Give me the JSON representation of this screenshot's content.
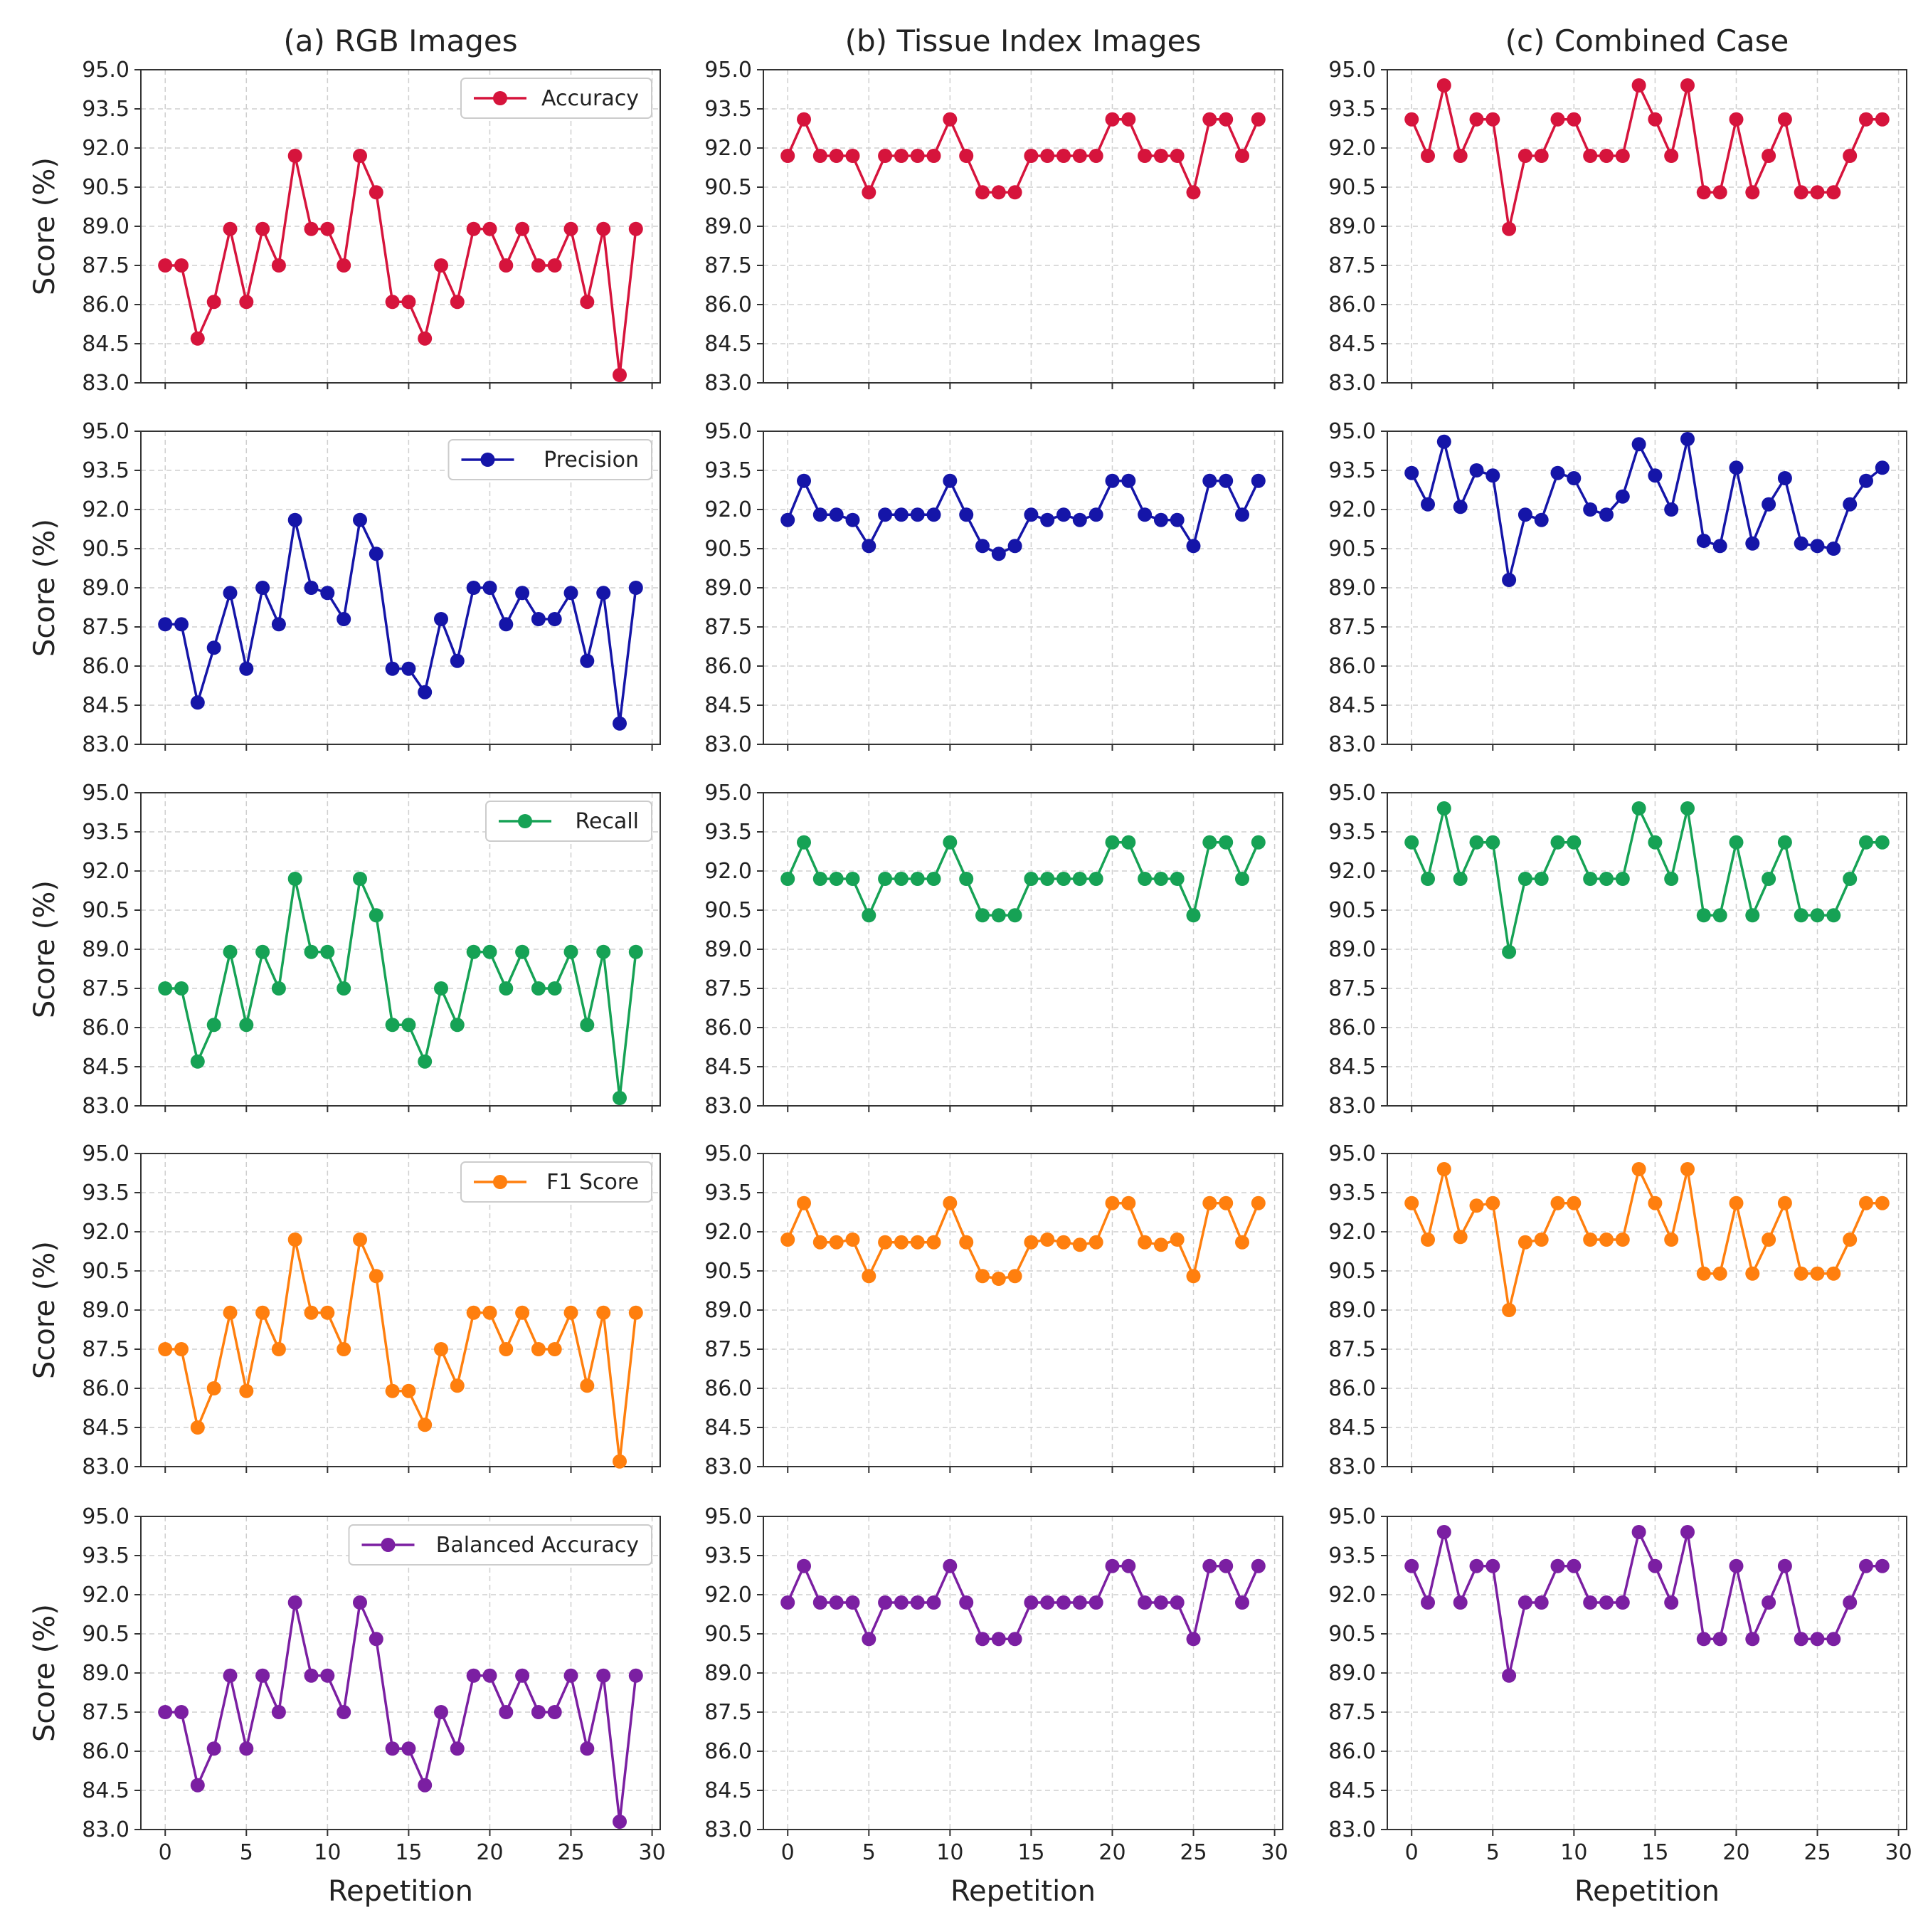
{
  "figure": {
    "columns": [
      "(a) RGB Images",
      "(b) Tissue Index Images",
      "(c) Combined Case"
    ],
    "ylabel": "Score (%)",
    "xlabel": "Repetition"
  },
  "chart_data": {
    "type": "line",
    "layout": "5 rows x 3 columns of line subplots",
    "x": [
      0,
      1,
      2,
      3,
      4,
      5,
      6,
      7,
      8,
      9,
      10,
      11,
      12,
      13,
      14,
      15,
      16,
      17,
      18,
      19,
      20,
      21,
      22,
      23,
      24,
      25,
      26,
      27,
      28,
      29
    ],
    "ylim": [
      83.0,
      95.0
    ],
    "yticks": [
      "95.0",
      "93.5",
      "92.0",
      "90.5",
      "89.0",
      "87.5",
      "86.0",
      "84.5",
      "83.0"
    ],
    "xlim": [
      -1.5,
      30.5
    ],
    "xticks": [
      "0",
      "5",
      "10",
      "15",
      "20",
      "25",
      "30"
    ],
    "grid": true,
    "legend_placement": "top-right (first column only)",
    "metrics": [
      {
        "name": "Accuracy",
        "color": "#d6143c",
        "series": [
          {
            "column": "(a) RGB Images",
            "values": [
              87.5,
              87.5,
              84.7,
              86.1,
              88.9,
              86.1,
              88.9,
              87.5,
              91.7,
              88.9,
              88.9,
              87.5,
              91.7,
              90.3,
              86.1,
              86.1,
              84.7,
              87.5,
              86.1,
              88.9,
              88.9,
              87.5,
              88.9,
              87.5,
              87.5,
              88.9,
              86.1,
              88.9,
              83.3,
              88.9
            ]
          },
          {
            "column": "(b) Tissue Index Images",
            "values": [
              91.7,
              93.1,
              91.7,
              91.7,
              91.7,
              90.3,
              91.7,
              91.7,
              91.7,
              91.7,
              93.1,
              91.7,
              90.3,
              90.3,
              90.3,
              91.7,
              91.7,
              91.7,
              91.7,
              91.7,
              93.1,
              93.1,
              91.7,
              91.7,
              91.7,
              90.3,
              93.1,
              93.1,
              91.7,
              93.1
            ]
          },
          {
            "column": "(c) Combined Case",
            "values": [
              93.1,
              91.7,
              94.4,
              91.7,
              93.1,
              93.1,
              88.9,
              91.7,
              91.7,
              93.1,
              93.1,
              91.7,
              91.7,
              91.7,
              94.4,
              93.1,
              91.7,
              94.4,
              90.3,
              90.3,
              93.1,
              90.3,
              91.7,
              93.1,
              90.3,
              90.3,
              90.3,
              91.7,
              93.1,
              93.1
            ]
          }
        ]
      },
      {
        "name": "Precision",
        "color": "#1515a8",
        "series": [
          {
            "column": "(a) RGB Images",
            "values": [
              87.6,
              87.6,
              84.6,
              86.7,
              88.8,
              85.9,
              89.0,
              87.6,
              91.6,
              89.0,
              88.8,
              87.8,
              91.6,
              90.3,
              85.9,
              85.9,
              85.0,
              87.8,
              86.2,
              89.0,
              89.0,
              87.6,
              88.8,
              87.8,
              87.8,
              88.8,
              86.2,
              88.8,
              83.8,
              89.0
            ]
          },
          {
            "column": "(b) Tissue Index Images",
            "values": [
              91.6,
              93.1,
              91.8,
              91.8,
              91.6,
              90.6,
              91.8,
              91.8,
              91.8,
              91.8,
              93.1,
              91.8,
              90.6,
              90.3,
              90.6,
              91.8,
              91.6,
              91.8,
              91.6,
              91.8,
              93.1,
              93.1,
              91.8,
              91.6,
              91.6,
              90.6,
              93.1,
              93.1,
              91.8,
              93.1
            ]
          },
          {
            "column": "(c) Combined Case",
            "values": [
              93.4,
              92.2,
              94.6,
              92.1,
              93.5,
              93.3,
              89.3,
              91.8,
              91.6,
              93.4,
              93.2,
              92.0,
              91.8,
              92.5,
              94.5,
              93.3,
              92.0,
              94.7,
              90.8,
              90.6,
              93.6,
              90.7,
              92.2,
              93.2,
              90.7,
              90.6,
              90.5,
              92.2,
              93.1,
              93.6
            ]
          }
        ]
      },
      {
        "name": "Recall",
        "color": "#16a255",
        "series": [
          {
            "column": "(a) RGB Images",
            "values": [
              87.5,
              87.5,
              84.7,
              86.1,
              88.9,
              86.1,
              88.9,
              87.5,
              91.7,
              88.9,
              88.9,
              87.5,
              91.7,
              90.3,
              86.1,
              86.1,
              84.7,
              87.5,
              86.1,
              88.9,
              88.9,
              87.5,
              88.9,
              87.5,
              87.5,
              88.9,
              86.1,
              88.9,
              83.3,
              88.9
            ]
          },
          {
            "column": "(b) Tissue Index Images",
            "values": [
              91.7,
              93.1,
              91.7,
              91.7,
              91.7,
              90.3,
              91.7,
              91.7,
              91.7,
              91.7,
              93.1,
              91.7,
              90.3,
              90.3,
              90.3,
              91.7,
              91.7,
              91.7,
              91.7,
              91.7,
              93.1,
              93.1,
              91.7,
              91.7,
              91.7,
              90.3,
              93.1,
              93.1,
              91.7,
              93.1
            ]
          },
          {
            "column": "(c) Combined Case",
            "values": [
              93.1,
              91.7,
              94.4,
              91.7,
              93.1,
              93.1,
              88.9,
              91.7,
              91.7,
              93.1,
              93.1,
              91.7,
              91.7,
              91.7,
              94.4,
              93.1,
              91.7,
              94.4,
              90.3,
              90.3,
              93.1,
              90.3,
              91.7,
              93.1,
              90.3,
              90.3,
              90.3,
              91.7,
              93.1,
              93.1
            ]
          }
        ]
      },
      {
        "name": "F1 Score",
        "color": "#ff7f0e",
        "series": [
          {
            "column": "(a) RGB Images",
            "values": [
              87.5,
              87.5,
              84.5,
              86.0,
              88.9,
              85.9,
              88.9,
              87.5,
              91.7,
              88.9,
              88.9,
              87.5,
              91.7,
              90.3,
              85.9,
              85.9,
              84.6,
              87.5,
              86.1,
              88.9,
              88.9,
              87.5,
              88.9,
              87.5,
              87.5,
              88.9,
              86.1,
              88.9,
              83.2,
              88.9
            ]
          },
          {
            "column": "(b) Tissue Index Images",
            "values": [
              91.7,
              93.1,
              91.6,
              91.6,
              91.7,
              90.3,
              91.6,
              91.6,
              91.6,
              91.6,
              93.1,
              91.6,
              90.3,
              90.2,
              90.3,
              91.6,
              91.7,
              91.6,
              91.5,
              91.6,
              93.1,
              93.1,
              91.6,
              91.5,
              91.7,
              90.3,
              93.1,
              93.1,
              91.6,
              93.1
            ]
          },
          {
            "column": "(c) Combined Case",
            "values": [
              93.1,
              91.7,
              94.4,
              91.8,
              93.0,
              93.1,
              89.0,
              91.6,
              91.7,
              93.1,
              93.1,
              91.7,
              91.7,
              91.7,
              94.4,
              93.1,
              91.7,
              94.4,
              90.4,
              90.4,
              93.1,
              90.4,
              91.7,
              93.1,
              90.4,
              90.4,
              90.4,
              91.7,
              93.1,
              93.1
            ]
          }
        ]
      },
      {
        "name": "Balanced Accuracy",
        "color": "#7b1fa2",
        "series": [
          {
            "column": "(a) RGB Images",
            "values": [
              87.5,
              87.5,
              84.7,
              86.1,
              88.9,
              86.1,
              88.9,
              87.5,
              91.7,
              88.9,
              88.9,
              87.5,
              91.7,
              90.3,
              86.1,
              86.1,
              84.7,
              87.5,
              86.1,
              88.9,
              88.9,
              87.5,
              88.9,
              87.5,
              87.5,
              88.9,
              86.1,
              88.9,
              83.3,
              88.9
            ]
          },
          {
            "column": "(b) Tissue Index Images",
            "values": [
              91.7,
              93.1,
              91.7,
              91.7,
              91.7,
              90.3,
              91.7,
              91.7,
              91.7,
              91.7,
              93.1,
              91.7,
              90.3,
              90.3,
              90.3,
              91.7,
              91.7,
              91.7,
              91.7,
              91.7,
              93.1,
              93.1,
              91.7,
              91.7,
              91.7,
              90.3,
              93.1,
              93.1,
              91.7,
              93.1
            ]
          },
          {
            "column": "(c) Combined Case",
            "values": [
              93.1,
              91.7,
              94.4,
              91.7,
              93.1,
              93.1,
              88.9,
              91.7,
              91.7,
              93.1,
              93.1,
              91.7,
              91.7,
              91.7,
              94.4,
              93.1,
              91.7,
              94.4,
              90.3,
              90.3,
              93.1,
              90.3,
              91.7,
              93.1,
              90.3,
              90.3,
              90.3,
              91.7,
              93.1,
              93.1
            ]
          }
        ]
      }
    ]
  }
}
